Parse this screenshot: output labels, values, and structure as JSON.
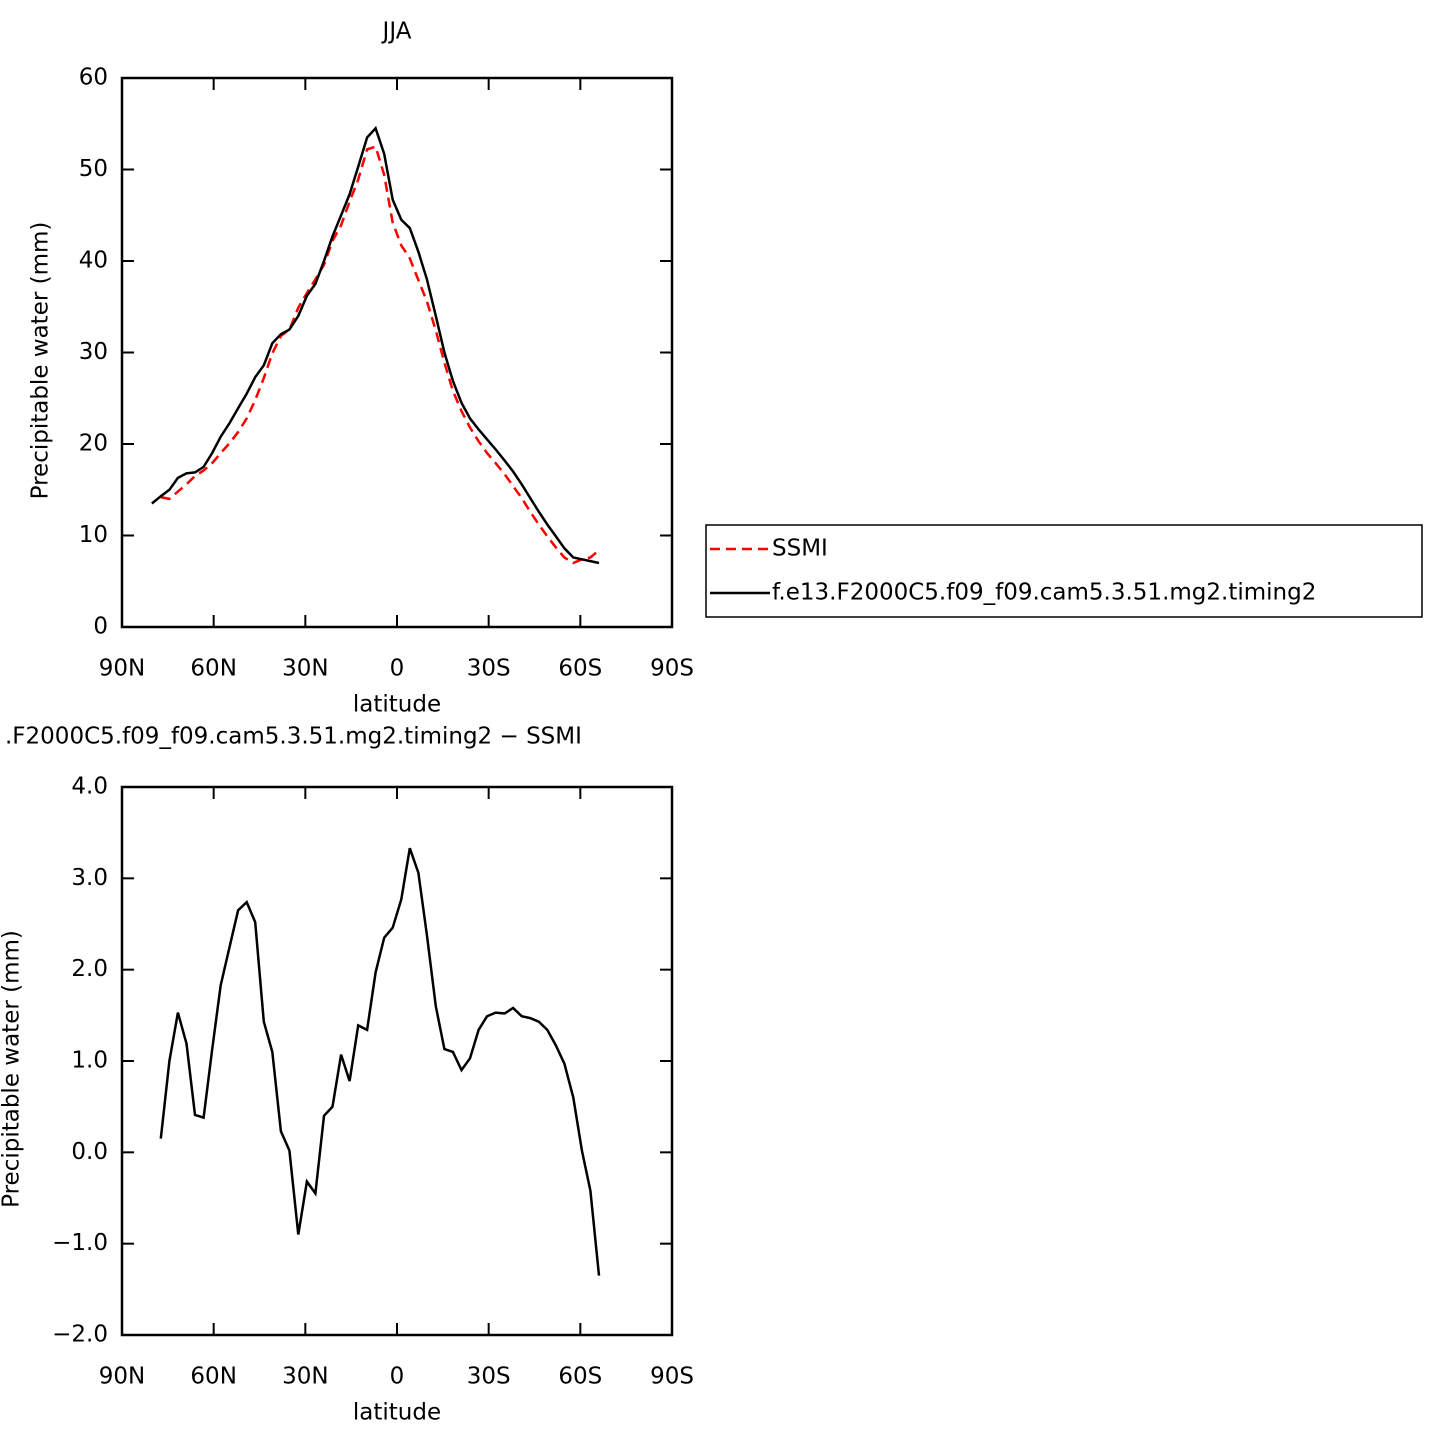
{
  "chart_data": [
    {
      "type": "line",
      "title": "JJA",
      "ylabel": "Precipitable water (mm)",
      "xlabel": "latitude",
      "x": [
        80.2,
        77.3,
        74.5,
        71.7,
        68.9,
        66.1,
        63.3,
        60.5,
        57.7,
        54.8,
        52.0,
        49.2,
        46.4,
        43.6,
        40.8,
        38.0,
        35.2,
        32.3,
        29.5,
        26.7,
        23.9,
        21.1,
        18.3,
        15.5,
        12.7,
        9.8,
        7.0,
        4.2,
        1.4,
        -1.4,
        -4.2,
        -7.0,
        -9.8,
        -12.7,
        -15.5,
        -18.3,
        -21.1,
        -23.9,
        -26.7,
        -29.5,
        -32.3,
        -35.2,
        -38.0,
        -40.8,
        -43.6,
        -46.4,
        -49.2,
        -52.0,
        -54.8,
        -57.7,
        -60.5,
        -63.3,
        -66.1
      ],
      "series": [
        {
          "name": "SSMI",
          "color": "#ff0000",
          "dashed": true,
          "values": [
            null,
            14.2,
            14.0,
            14.8,
            15.6,
            16.5,
            17.1,
            17.9,
            19.0,
            20.1,
            21.3,
            22.8,
            24.8,
            27.2,
            29.9,
            31.8,
            32.5,
            34.9,
            36.5,
            38.0,
            39.6,
            42.2,
            43.9,
            46.5,
            48.9,
            52.2,
            52.5,
            49.4,
            44.2,
            41.7,
            40.3,
            37.9,
            35.6,
            32.4,
            28.9,
            25.8,
            23.6,
            21.8,
            20.3,
            19.0,
            17.9,
            16.7,
            15.4,
            14.1,
            12.6,
            11.2,
            9.9,
            8.7,
            7.6,
            7.0,
            7.4,
            7.6,
            8.4
          ]
        },
        {
          "name": "f.e13.F2000C5.f09_f09.cam5.3.51.mg2.timing2",
          "color": "#000000",
          "dashed": false,
          "values": [
            13.5,
            14.3,
            15.0,
            16.3,
            16.8,
            16.9,
            17.5,
            19.0,
            20.8,
            22.3,
            23.9,
            25.5,
            27.3,
            28.6,
            31.0,
            32.0,
            32.5,
            34.0,
            36.2,
            37.5,
            40.0,
            42.7,
            45.0,
            47.3,
            50.3,
            53.5,
            54.5,
            51.7,
            46.7,
            44.5,
            43.6,
            41.0,
            38.0,
            34.0,
            30.0,
            26.9,
            24.5,
            22.8,
            21.6,
            20.5,
            19.4,
            18.2,
            17.0,
            15.6,
            14.1,
            12.6,
            11.2,
            9.9,
            8.6,
            7.6,
            7.4,
            7.2,
            7.0
          ]
        }
      ],
      "xlim": [
        90,
        -90
      ],
      "xticks": [
        {
          "value": 90,
          "label": "90N"
        },
        {
          "value": 60,
          "label": "60N"
        },
        {
          "value": 30,
          "label": "30N"
        },
        0,
        {
          "value": -30,
          "label": "30S"
        },
        {
          "value": -60,
          "label": "60S"
        },
        {
          "value": -90,
          "label": "90S"
        }
      ],
      "ylim": [
        0,
        60
      ],
      "yticks": [
        0,
        10,
        20,
        30,
        40,
        50,
        60
      ],
      "legend": "right"
    },
    {
      "type": "line",
      "title": ".F2000C5.f09_f09.cam5.3.51.mg2.timing2 − SSMI",
      "ylabel": "Precipitable water (mm)",
      "xlabel": "latitude",
      "x": [
        77.3,
        74.5,
        71.7,
        68.9,
        66.1,
        63.3,
        60.5,
        57.7,
        54.8,
        52.0,
        49.2,
        46.4,
        43.6,
        40.8,
        38.0,
        35.2,
        32.3,
        29.5,
        26.7,
        23.9,
        21.1,
        18.3,
        15.5,
        12.7,
        9.8,
        7.0,
        4.2,
        1.4,
        -1.4,
        -4.2,
        -7.0,
        -9.8,
        -12.7,
        -15.5,
        -18.3,
        -21.1,
        -23.9,
        -26.7,
        -29.5,
        -32.3,
        -35.2,
        -38.0,
        -40.8,
        -43.6,
        -46.4,
        -49.2,
        -52.0,
        -54.8,
        -57.7,
        -60.5,
        -63.3,
        -66.1
      ],
      "values": [
        0.15,
        1.0,
        1.53,
        1.19,
        0.41,
        0.38,
        1.12,
        1.83,
        2.25,
        2.65,
        2.74,
        2.52,
        1.43,
        1.1,
        0.23,
        0.02,
        -0.9,
        -0.32,
        -0.45,
        0.4,
        0.5,
        1.07,
        0.78,
        1.39,
        1.34,
        1.97,
        2.35,
        2.46,
        2.77,
        3.33,
        3.06,
        2.38,
        1.6,
        1.13,
        1.1,
        0.9,
        1.03,
        1.34,
        1.49,
        1.53,
        1.52,
        1.58,
        1.49,
        1.47,
        1.43,
        1.34,
        1.17,
        0.97,
        0.6,
        0.02,
        -0.42,
        -1.35
      ],
      "color": "#000000",
      "xlim": [
        90,
        -90
      ],
      "xticks": [
        {
          "value": 90,
          "label": "90N"
        },
        {
          "value": 60,
          "label": "60N"
        },
        {
          "value": 30,
          "label": "30N"
        },
        0,
        {
          "value": -30,
          "label": "30S"
        },
        {
          "value": -60,
          "label": "60S"
        },
        {
          "value": -90,
          "label": "90S"
        }
      ],
      "ylim": [
        -2,
        4
      ],
      "yticks": [
        {
          "value": -2,
          "label": "−2.0"
        },
        {
          "value": -1,
          "label": "−1.0"
        },
        {
          "value": 0,
          "label": "0.0"
        },
        {
          "value": 1,
          "label": "1.0"
        },
        {
          "value": 2,
          "label": "2.0"
        },
        {
          "value": 3,
          "label": "3.0"
        },
        {
          "value": 4,
          "label": "4.0"
        }
      ]
    }
  ]
}
